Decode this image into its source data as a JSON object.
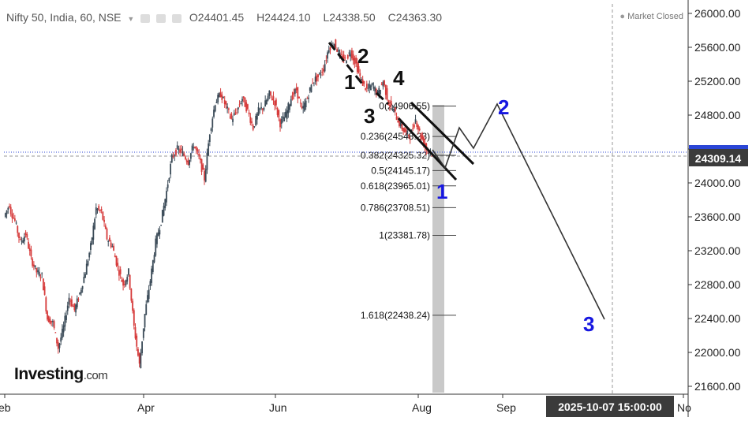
{
  "header": {
    "symbol": "Nifty 50, India, 60, NSE",
    "open": "O24401.45",
    "high": "H24424.10",
    "low": "L24338.50",
    "close": "C24363.30",
    "market_status": "Market Closed"
  },
  "logo": {
    "main": "Investing",
    "suffix": ".com"
  },
  "crosshair": {
    "price_label": "24309.14",
    "time_label": "2025-10-07 15:00:00"
  },
  "colors": {
    "up": "#3a4a57",
    "down": "#d63a3a",
    "fib_band": "#c7c7c7",
    "wave_blue": "#1717e0",
    "wave_black": "#111111",
    "price_line": "#2b46d6",
    "accent_bg": "#3b3b3b"
  },
  "chart_data": {
    "type": "candlestick",
    "x_ticks": [
      "eb",
      "Apr",
      "Jun",
      "Aug",
      "Sep",
      "No"
    ],
    "y_ticks": [
      "26000.00",
      "25600.00",
      "25200.00",
      "24800.00",
      "24400.00",
      "24000.00",
      "23600.00",
      "23200.00",
      "22800.00",
      "22400.00",
      "22000.00",
      "21600.00"
    ],
    "ylim": [
      21500,
      26150
    ],
    "price_path": [
      [
        23600,
        23750
      ],
      [
        23700,
        23550
      ],
      [
        23550,
        23300
      ],
      [
        23300,
        23400
      ],
      [
        23400,
        23100
      ],
      [
        23100,
        22950
      ],
      [
        22950,
        22900
      ],
      [
        22900,
        22400
      ],
      [
        22400,
        22350
      ],
      [
        22350,
        22050
      ],
      [
        22050,
        22300
      ],
      [
        22300,
        22650
      ],
      [
        22650,
        22500
      ],
      [
        22500,
        22700
      ],
      [
        22700,
        22950
      ],
      [
        22950,
        23250
      ],
      [
        23250,
        23700
      ],
      [
        23700,
        23650
      ],
      [
        23650,
        23350
      ],
      [
        23350,
        23250
      ],
      [
        23250,
        23000
      ],
      [
        23000,
        22800
      ],
      [
        22800,
        22950
      ],
      [
        22950,
        22300
      ],
      [
        22300,
        21850
      ],
      [
        21850,
        22450
      ],
      [
        22450,
        22850
      ],
      [
        22850,
        23300
      ],
      [
        23300,
        23550
      ],
      [
        23550,
        23900
      ],
      [
        23900,
        24300
      ],
      [
        24300,
        24400
      ],
      [
        24400,
        24350
      ],
      [
        24350,
        24250
      ],
      [
        24250,
        24450
      ],
      [
        24450,
        24300
      ],
      [
        24300,
        24050
      ],
      [
        24050,
        24600
      ],
      [
        24600,
        24950
      ],
      [
        24950,
        25050
      ],
      [
        25050,
        24900
      ],
      [
        24900,
        24750
      ],
      [
        24750,
        24850
      ],
      [
        24850,
        25000
      ],
      [
        25000,
        24850
      ],
      [
        24850,
        24650
      ],
      [
        24650,
        24850
      ],
      [
        24850,
        24900
      ],
      [
        24900,
        25050
      ],
      [
        25050,
        24950
      ],
      [
        24950,
        24700
      ],
      [
        24700,
        24800
      ],
      [
        24800,
        25000
      ],
      [
        25000,
        25100
      ],
      [
        25100,
        24850
      ],
      [
        24850,
        25000
      ],
      [
        25000,
        25200
      ],
      [
        25200,
        25250
      ],
      [
        25250,
        25350
      ],
      [
        25350,
        25600
      ],
      [
        25600,
        25650
      ],
      [
        25650,
        25500
      ],
      [
        25500,
        25450
      ],
      [
        25450,
        25550
      ],
      [
        25550,
        25400
      ],
      [
        25400,
        25200
      ],
      [
        25200,
        25100
      ],
      [
        25100,
        25150
      ],
      [
        25150,
        25050
      ],
      [
        25050,
        25200
      ],
      [
        25200,
        24950
      ],
      [
        24950,
        24850
      ],
      [
        24850,
        24700
      ],
      [
        24700,
        24600
      ],
      [
        24600,
        24550
      ],
      [
        24550,
        24750
      ],
      [
        24750,
        24550
      ],
      [
        24550,
        24400
      ],
      [
        24400,
        24363
      ]
    ],
    "fibonacci": [
      {
        "label": "0(24906.55)",
        "value": 24906.55
      },
      {
        "label": "0.236(24548.23)",
        "value": 24548.23
      },
      {
        "label": "0.382(24325.32)",
        "value": 24325.32
      },
      {
        "label": "0.5(24145.17)",
        "value": 24145.17
      },
      {
        "label": "0.618(23965.01)",
        "value": 23965.01
      },
      {
        "label": "0.786(23708.51)",
        "value": 23708.51
      },
      {
        "label": "1(23381.78)",
        "value": 23381.78
      },
      {
        "label": "1.618(22438.24)",
        "value": 22438.24
      }
    ],
    "wave_labels_black": [
      "1",
      "2",
      "3",
      "4"
    ],
    "wave_labels_blue": [
      "1",
      "2",
      "3"
    ],
    "price_line_value": 24363.3,
    "crosshair_value": 24309.14
  }
}
